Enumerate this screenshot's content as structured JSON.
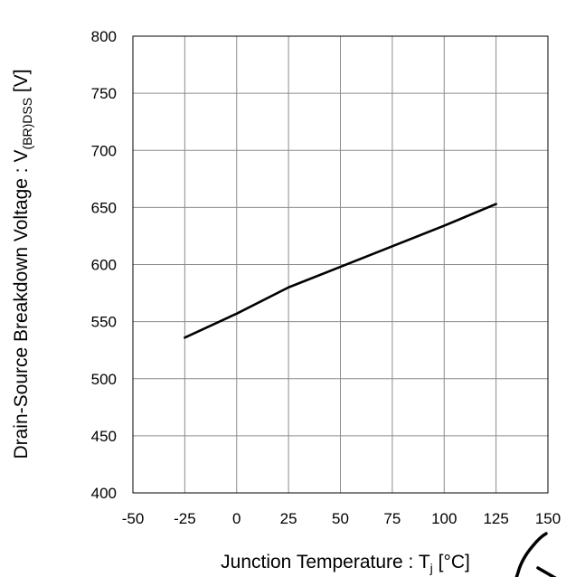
{
  "chart_data": {
    "type": "line",
    "xlabel": {
      "main": "Junction Temperature : T",
      "sub": "j",
      "unit": " [°C]"
    },
    "ylabel": {
      "main": "Drain-Source Breakdown Voltage : V",
      "sub": "(BR)DSS",
      "unit": " [V]"
    },
    "xlim": [
      -50,
      150
    ],
    "ylim": [
      400,
      800
    ],
    "x_ticks": [
      -50,
      -25,
      0,
      25,
      50,
      75,
      100,
      125,
      150
    ],
    "y_ticks": [
      400,
      450,
      500,
      550,
      600,
      650,
      700,
      750,
      800
    ],
    "grid": true,
    "series": [
      {
        "x": [
          -25,
          0,
          25,
          50,
          75,
          100,
          125
        ],
        "y": [
          536,
          557,
          580,
          598,
          616,
          634,
          653
        ]
      }
    ]
  },
  "logo": {
    "icon": "corner-logo-mark"
  }
}
